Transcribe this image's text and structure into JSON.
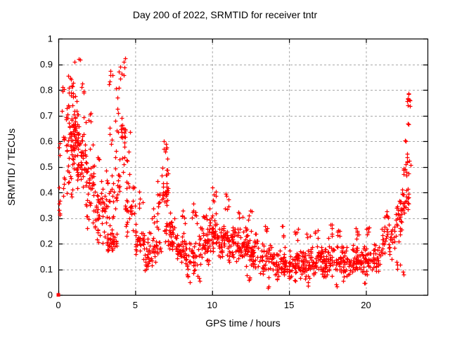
{
  "title": "Day 200 of 2022, SRMTID for receiver tntr",
  "chart_data": {
    "type": "scatter",
    "title": "Day 200 of 2022, SRMTID for receiver tntr",
    "xlabel": "GPS time / hours",
    "ylabel": "SRMTID / TECUs",
    "xlim": [
      0,
      24
    ],
    "ylim": [
      0,
      1
    ],
    "grid": true,
    "legend": false,
    "x_ticks": [
      {
        "v": 0,
        "label": "0"
      },
      {
        "v": 5,
        "label": "5"
      },
      {
        "v": 10,
        "label": "10"
      },
      {
        "v": 15,
        "label": "15"
      },
      {
        "v": 20,
        "label": "20"
      }
    ],
    "y_ticks": [
      {
        "v": 0,
        "label": "0"
      },
      {
        "v": 0.1,
        "label": "0.1"
      },
      {
        "v": 0.2,
        "label": "0.2"
      },
      {
        "v": 0.3,
        "label": "0.3"
      },
      {
        "v": 0.4,
        "label": "0.4"
      },
      {
        "v": 0.5,
        "label": "0.5"
      },
      {
        "v": 0.6,
        "label": "0.6"
      },
      {
        "v": 0.7,
        "label": "0.7"
      },
      {
        "v": 0.8,
        "label": "0.8"
      },
      {
        "v": 0.9,
        "label": "0.9"
      },
      {
        "v": 1,
        "label": "1"
      }
    ],
    "marker": {
      "shape": "plus",
      "color": "#ff0000",
      "size": 7
    },
    "grid_color": "#a8a8a8",
    "frame_color": "#000000",
    "special_points": [
      {
        "x": 0,
        "y": 0,
        "shape": "square"
      }
    ],
    "seed": 42,
    "clusters_format": [
      "x_start_hour",
      "x_end_hour",
      "y_min_tecu",
      "y_max_tecu",
      "n_points",
      "spread: t=streaky-core u=uniform"
    ],
    "clusters": [
      [
        0.02,
        0.12,
        0.2,
        0.45,
        6,
        "u"
      ],
      [
        0.04,
        0.12,
        0.5,
        0.65,
        3,
        "u"
      ],
      [
        0.25,
        0.45,
        0.6,
        0.85,
        8,
        "u"
      ],
      [
        0.3,
        0.5,
        0.38,
        0.5,
        5,
        "u"
      ],
      [
        0.5,
        1.1,
        0.35,
        0.85,
        60,
        "t"
      ],
      [
        0.55,
        1.0,
        0.76,
        0.86,
        10,
        "u"
      ],
      [
        0.9,
        1.35,
        0.45,
        0.8,
        40,
        "t"
      ],
      [
        1.05,
        1.45,
        0.88,
        0.93,
        3,
        "u"
      ],
      [
        1.2,
        1.8,
        0.3,
        0.72,
        50,
        "t"
      ],
      [
        1.5,
        1.7,
        0.78,
        0.85,
        4,
        "u"
      ],
      [
        1.8,
        2.4,
        0.22,
        0.62,
        45,
        "t"
      ],
      [
        1.95,
        2.15,
        0.65,
        0.72,
        4,
        "u"
      ],
      [
        2.4,
        3.0,
        0.15,
        0.48,
        40,
        "t"
      ],
      [
        2.5,
        2.7,
        0.5,
        0.56,
        3,
        "u"
      ],
      [
        3.0,
        3.6,
        0.15,
        0.5,
        35,
        "t"
      ],
      [
        3.25,
        3.55,
        0.82,
        0.88,
        5,
        "u"
      ],
      [
        3.3,
        3.5,
        0.55,
        0.66,
        4,
        "u"
      ],
      [
        3.2,
        3.8,
        0.16,
        0.26,
        30,
        "t"
      ],
      [
        3.6,
        4.0,
        0.3,
        0.6,
        20,
        "t"
      ],
      [
        3.7,
        4.05,
        0.62,
        0.82,
        10,
        "u"
      ],
      [
        3.9,
        4.35,
        0.84,
        0.93,
        8,
        "u"
      ],
      [
        4.05,
        4.35,
        0.45,
        0.8,
        18,
        "t"
      ],
      [
        4.3,
        4.7,
        0.5,
        0.65,
        6,
        "u"
      ],
      [
        4.3,
        5.0,
        0.2,
        0.48,
        35,
        "t"
      ],
      [
        5.0,
        5.6,
        0.12,
        0.3,
        35,
        "t"
      ],
      [
        5.2,
        5.5,
        0.33,
        0.42,
        5,
        "u"
      ],
      [
        5.6,
        6.3,
        0.08,
        0.25,
        40,
        "t"
      ],
      [
        6.0,
        6.2,
        0.28,
        0.35,
        4,
        "u"
      ],
      [
        6.3,
        6.6,
        0.25,
        0.45,
        12,
        "u"
      ],
      [
        6.3,
        6.7,
        0.12,
        0.25,
        15,
        "t"
      ],
      [
        6.7,
        7.15,
        0.3,
        0.55,
        30,
        "t"
      ],
      [
        6.8,
        7.05,
        0.55,
        0.61,
        6,
        "u"
      ],
      [
        6.9,
        7.3,
        0.18,
        0.3,
        15,
        "t"
      ],
      [
        7.2,
        7.7,
        0.12,
        0.35,
        30,
        "t"
      ],
      [
        7.7,
        8.3,
        0.1,
        0.25,
        40,
        "t"
      ],
      [
        8.0,
        8.3,
        0.27,
        0.33,
        5,
        "u"
      ],
      [
        8.3,
        8.6,
        0.04,
        0.08,
        4,
        "u"
      ],
      [
        8.3,
        9.0,
        0.08,
        0.22,
        35,
        "t"
      ],
      [
        8.65,
        9.05,
        0.28,
        0.38,
        8,
        "u"
      ],
      [
        9.0,
        9.8,
        0.1,
        0.3,
        45,
        "t"
      ],
      [
        9.3,
        9.7,
        0.29,
        0.33,
        5,
        "u"
      ],
      [
        9.0,
        9.2,
        0.05,
        0.08,
        3,
        "u"
      ],
      [
        9.8,
        10.3,
        0.15,
        0.35,
        40,
        "t"
      ],
      [
        10.0,
        10.25,
        0.36,
        0.42,
        6,
        "u"
      ],
      [
        10.3,
        11.0,
        0.12,
        0.3,
        45,
        "t"
      ],
      [
        10.8,
        11.2,
        0.32,
        0.4,
        6,
        "u"
      ],
      [
        11.0,
        11.7,
        0.1,
        0.3,
        45,
        "t"
      ],
      [
        11.6,
        12.1,
        0.3,
        0.34,
        4,
        "u"
      ],
      [
        11.7,
        12.4,
        0.1,
        0.28,
        45,
        "t"
      ],
      [
        12.3,
        12.6,
        0.29,
        0.33,
        4,
        "u"
      ],
      [
        12.2,
        12.6,
        0.05,
        0.08,
        4,
        "u"
      ],
      [
        12.4,
        13.1,
        0.08,
        0.25,
        45,
        "t"
      ],
      [
        13.1,
        14.0,
        0.06,
        0.22,
        50,
        "t"
      ],
      [
        13.3,
        13.6,
        0.24,
        0.27,
        4,
        "u"
      ],
      [
        13.6,
        13.8,
        0.02,
        0.04,
        2,
        "u"
      ],
      [
        14.0,
        14.8,
        0.05,
        0.19,
        50,
        "t"
      ],
      [
        14.5,
        14.7,
        0.22,
        0.27,
        4,
        "u"
      ],
      [
        14.8,
        15.6,
        0.05,
        0.19,
        50,
        "t"
      ],
      [
        15.3,
        15.6,
        0.2,
        0.26,
        5,
        "u"
      ],
      [
        15.6,
        16.4,
        0.05,
        0.2,
        50,
        "t"
      ],
      [
        16.1,
        16.4,
        0.21,
        0.25,
        4,
        "u"
      ],
      [
        16.2,
        16.4,
        0.03,
        0.05,
        2,
        "u"
      ],
      [
        16.4,
        17.2,
        0.06,
        0.2,
        50,
        "t"
      ],
      [
        16.6,
        16.9,
        0.22,
        0.26,
        4,
        "u"
      ],
      [
        17.2,
        18.0,
        0.05,
        0.2,
        50,
        "t"
      ],
      [
        17.4,
        17.8,
        0.22,
        0.28,
        6,
        "u"
      ],
      [
        18.0,
        18.8,
        0.05,
        0.21,
        50,
        "t"
      ],
      [
        18.1,
        18.35,
        0.22,
        0.26,
        5,
        "u"
      ],
      [
        18.0,
        18.2,
        0.03,
        0.05,
        2,
        "u"
      ],
      [
        18.8,
        19.6,
        0.06,
        0.2,
        50,
        "t"
      ],
      [
        19.3,
        19.6,
        0.22,
        0.27,
        6,
        "u"
      ],
      [
        19.6,
        20.4,
        0.06,
        0.22,
        45,
        "t"
      ],
      [
        20.0,
        20.35,
        0.23,
        0.27,
        5,
        "u"
      ],
      [
        19.8,
        20.0,
        0.03,
        0.05,
        2,
        "u"
      ],
      [
        20.4,
        21.0,
        0.08,
        0.22,
        35,
        "t"
      ],
      [
        21.0,
        21.9,
        0.13,
        0.3,
        40,
        "t"
      ],
      [
        21.2,
        21.5,
        0.3,
        0.35,
        6,
        "u"
      ],
      [
        21.9,
        22.35,
        0.2,
        0.38,
        25,
        "t"
      ],
      [
        22.0,
        22.3,
        0.1,
        0.15,
        4,
        "u"
      ],
      [
        22.2,
        22.8,
        0.3,
        0.45,
        25,
        "t"
      ],
      [
        22.4,
        22.9,
        0.44,
        0.57,
        15,
        "t"
      ],
      [
        22.3,
        22.45,
        0.07,
        0.1,
        2,
        "u"
      ],
      [
        22.55,
        22.65,
        0.6,
        0.63,
        2,
        "u"
      ],
      [
        22.7,
        22.8,
        0.66,
        0.68,
        2,
        "u"
      ],
      [
        22.68,
        22.9,
        0.73,
        0.8,
        9,
        "u"
      ]
    ]
  }
}
